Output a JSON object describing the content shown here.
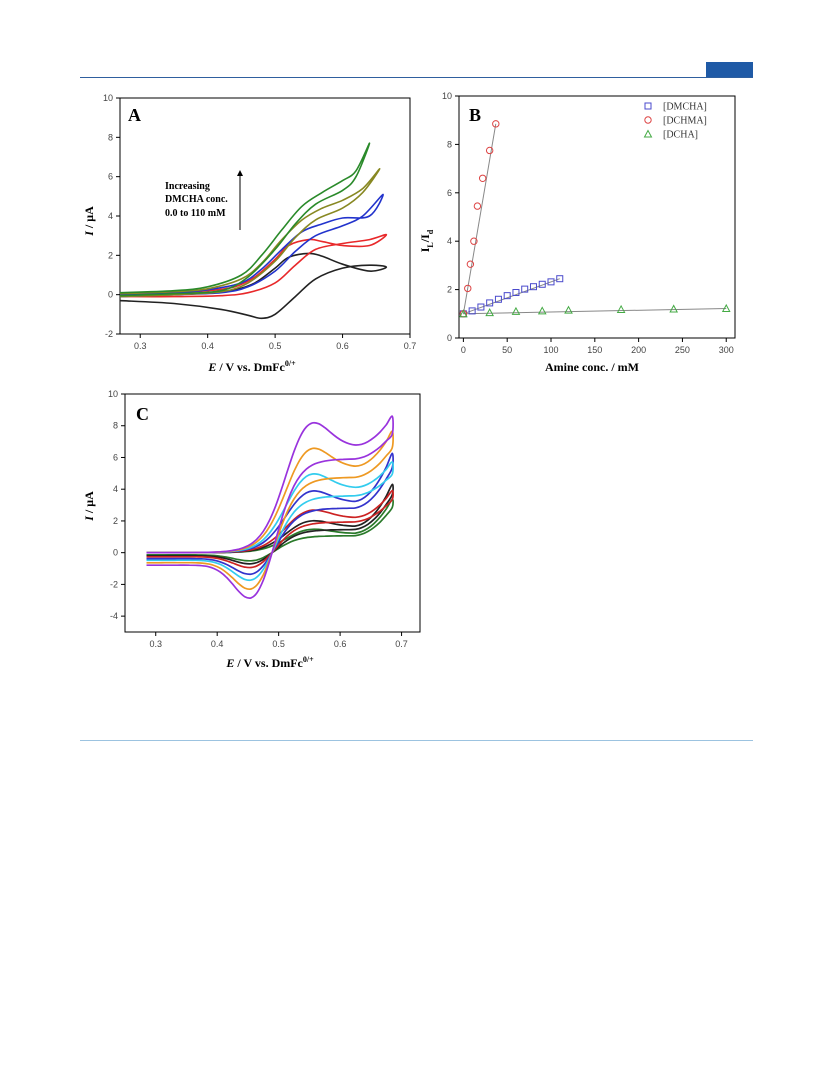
{
  "page": {
    "accent": "#1f5aa6"
  },
  "chart_data": [
    {
      "panel": "A",
      "type": "line",
      "xlabel": "E / V vs. DmFc",
      "xlabel_sup": "0/+",
      "ylabel": "I / μA",
      "xlim": [
        0.27,
        0.7
      ],
      "ylim": [
        -2,
        10
      ],
      "xticks": [
        0.3,
        0.4,
        0.5,
        0.6,
        0.7
      ],
      "yticks": [
        -2,
        0,
        2,
        4,
        6,
        8,
        10
      ],
      "annotation": [
        "Increasing",
        "DMCHA conc.",
        "0.0 to 110 mM"
      ],
      "series": [
        {
          "color": "#222222",
          "points": [
            [
              0.27,
              -0.3
            ],
            [
              0.35,
              -0.45
            ],
            [
              0.42,
              -0.75
            ],
            [
              0.46,
              -1.05
            ],
            [
              0.48,
              -1.2
            ],
            [
              0.5,
              -1.0
            ],
            [
              0.53,
              -0.1
            ],
            [
              0.56,
              0.8
            ],
            [
              0.6,
              1.35
            ],
            [
              0.64,
              1.5
            ],
            [
              0.665,
              1.4
            ],
            [
              0.64,
              1.2
            ],
            [
              0.6,
              1.55
            ],
            [
              0.57,
              1.95
            ],
            [
              0.55,
              2.1
            ],
            [
              0.52,
              1.9
            ],
            [
              0.5,
              1.35
            ],
            [
              0.47,
              0.6
            ],
            [
              0.44,
              0.25
            ],
            [
              0.4,
              0.1
            ],
            [
              0.35,
              0.0
            ],
            [
              0.27,
              -0.05
            ]
          ]
        },
        {
          "color": "#e8282a",
          "points": [
            [
              0.27,
              -0.1
            ],
            [
              0.35,
              -0.1
            ],
            [
              0.42,
              -0.05
            ],
            [
              0.46,
              0.1
            ],
            [
              0.5,
              0.6
            ],
            [
              0.53,
              1.5
            ],
            [
              0.56,
              2.3
            ],
            [
              0.6,
              2.6
            ],
            [
              0.64,
              2.8
            ],
            [
              0.665,
              3.05
            ],
            [
              0.64,
              2.5
            ],
            [
              0.6,
              2.5
            ],
            [
              0.57,
              2.7
            ],
            [
              0.55,
              2.8
            ],
            [
              0.52,
              2.5
            ],
            [
              0.5,
              1.8
            ],
            [
              0.47,
              0.9
            ],
            [
              0.44,
              0.4
            ],
            [
              0.4,
              0.2
            ],
            [
              0.35,
              0.1
            ],
            [
              0.27,
              0.0
            ]
          ]
        },
        {
          "color": "#2233cc",
          "points": [
            [
              0.27,
              -0.1
            ],
            [
              0.35,
              0.0
            ],
            [
              0.42,
              0.1
            ],
            [
              0.46,
              0.4
            ],
            [
              0.5,
              1.2
            ],
            [
              0.53,
              2.2
            ],
            [
              0.56,
              3.0
            ],
            [
              0.6,
              3.5
            ],
            [
              0.63,
              4.0
            ],
            [
              0.66,
              5.1
            ],
            [
              0.64,
              4.0
            ],
            [
              0.6,
              3.9
            ],
            [
              0.57,
              3.6
            ],
            [
              0.54,
              3.2
            ],
            [
              0.51,
              2.3
            ],
            [
              0.48,
              1.3
            ],
            [
              0.45,
              0.6
            ],
            [
              0.4,
              0.25
            ],
            [
              0.35,
              0.1
            ],
            [
              0.27,
              0.0
            ]
          ]
        },
        {
          "color": "#888822",
          "points": [
            [
              0.27,
              -0.1
            ],
            [
              0.35,
              0.0
            ],
            [
              0.42,
              0.15
            ],
            [
              0.46,
              0.6
            ],
            [
              0.5,
              1.7
            ],
            [
              0.53,
              2.9
            ],
            [
              0.56,
              3.8
            ],
            [
              0.6,
              4.4
            ],
            [
              0.63,
              5.2
            ],
            [
              0.655,
              6.4
            ],
            [
              0.63,
              5.4
            ],
            [
              0.6,
              4.8
            ],
            [
              0.57,
              4.4
            ],
            [
              0.54,
              3.8
            ],
            [
              0.51,
              2.8
            ],
            [
              0.48,
              1.6
            ],
            [
              0.45,
              0.8
            ],
            [
              0.4,
              0.3
            ],
            [
              0.35,
              0.15
            ],
            [
              0.27,
              0.05
            ]
          ]
        },
        {
          "color": "#2a8a2a",
          "points": [
            [
              0.27,
              -0.05
            ],
            [
              0.35,
              0.05
            ],
            [
              0.42,
              0.2
            ],
            [
              0.46,
              0.9
            ],
            [
              0.5,
              2.3
            ],
            [
              0.53,
              3.6
            ],
            [
              0.56,
              4.6
            ],
            [
              0.6,
              5.3
            ],
            [
              0.62,
              6.0
            ],
            [
              0.64,
              7.7
            ],
            [
              0.62,
              6.3
            ],
            [
              0.6,
              5.8
            ],
            [
              0.57,
              5.2
            ],
            [
              0.54,
              4.5
            ],
            [
              0.51,
              3.3
            ],
            [
              0.48,
              2.0
            ],
            [
              0.45,
              1.0
            ],
            [
              0.4,
              0.4
            ],
            [
              0.35,
              0.2
            ],
            [
              0.27,
              0.1
            ]
          ]
        }
      ]
    },
    {
      "panel": "B",
      "type": "scatter",
      "xlabel": "Amine conc. / mM",
      "ylabel": "I",
      "ylabel_sub1": "L",
      "ylabel_mid": "/I",
      "ylabel_sub2": "d",
      "xlim": [
        -5,
        310
      ],
      "ylim": [
        0,
        10
      ],
      "xticks": [
        0,
        50,
        100,
        150,
        200,
        250,
        300
      ],
      "yticks": [
        0,
        2,
        4,
        6,
        8,
        10
      ],
      "series": [
        {
          "name": "[DMCHA]",
          "color": "#4a4acc",
          "marker": "square",
          "points": [
            [
              0,
              1.0
            ],
            [
              10,
              1.12
            ],
            [
              20,
              1.28
            ],
            [
              30,
              1.45
            ],
            [
              40,
              1.6
            ],
            [
              50,
              1.75
            ],
            [
              60,
              1.88
            ],
            [
              70,
              2.02
            ],
            [
              80,
              2.12
            ],
            [
              90,
              2.22
            ],
            [
              100,
              2.32
            ],
            [
              110,
              2.45
            ]
          ]
        },
        {
          "name": "[DCHMA]",
          "color": "#dd4444",
          "marker": "circle",
          "points": [
            [
              0,
              1.0
            ],
            [
              5,
              2.05
            ],
            [
              8,
              3.05
            ],
            [
              12,
              4.0
            ],
            [
              16,
              5.45
            ],
            [
              22,
              6.6
            ],
            [
              30,
              7.75
            ],
            [
              37,
              8.85
            ]
          ]
        },
        {
          "name": "[DCHA]",
          "color": "#44aa44",
          "marker": "triangle",
          "points": [
            [
              0,
              1.0
            ],
            [
              30,
              1.05
            ],
            [
              60,
              1.1
            ],
            [
              90,
              1.12
            ],
            [
              120,
              1.15
            ],
            [
              180,
              1.18
            ],
            [
              240,
              1.2
            ],
            [
              300,
              1.22
            ]
          ]
        }
      ],
      "fits": [
        {
          "color": "#888888",
          "points": [
            [
              0,
              1.0
            ],
            [
              110,
              2.45
            ]
          ]
        },
        {
          "color": "#888888",
          "points": [
            [
              0,
              1.0
            ],
            [
              37,
              8.85
            ]
          ]
        },
        {
          "color": "#888888",
          "points": [
            [
              0,
              1.0
            ],
            [
              300,
              1.22
            ]
          ]
        }
      ]
    },
    {
      "panel": "C",
      "type": "line",
      "xlabel": "E / V vs. DmFc",
      "xlabel_sup": "0/+",
      "ylabel": "I / μA",
      "xlim": [
        0.25,
        0.73
      ],
      "ylim": [
        -5,
        10
      ],
      "xticks": [
        0.3,
        0.4,
        0.5,
        0.6,
        0.7
      ],
      "yticks": [
        -4,
        -2,
        0,
        2,
        4,
        6,
        8,
        10
      ],
      "series": [
        {
          "color": "#2a7a2a",
          "amp": 0.55,
          "tail": 3.6
        },
        {
          "color": "#222222",
          "amp": 0.75,
          "tail": 4.6
        },
        {
          "color": "#cc2222",
          "amp": 1.0,
          "tail": 4.1
        },
        {
          "color": "#3333cc",
          "amp": 1.45,
          "tail": 6.6
        },
        {
          "color": "#33ccee",
          "amp": 1.85,
          "tail": 5.9
        },
        {
          "color": "#ee9922",
          "amp": 2.45,
          "tail": 7.9
        },
        {
          "color": "#9933dd",
          "amp": 3.05,
          "tail": 8.8
        }
      ]
    }
  ]
}
